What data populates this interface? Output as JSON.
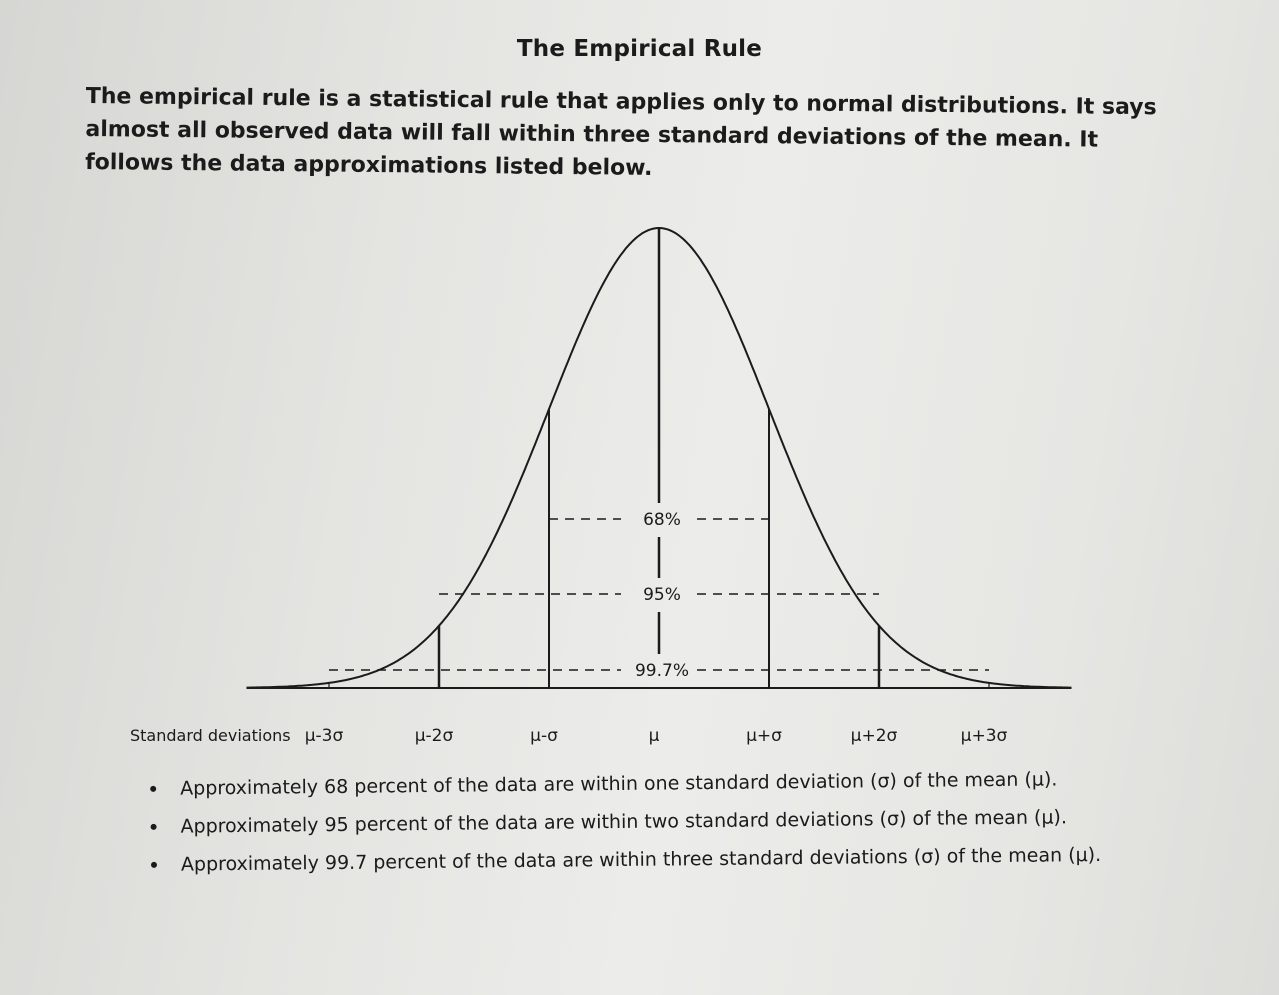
{
  "document": {
    "title": "The Empirical Rule",
    "intro": "The empirical rule is a statistical rule that applies only to normal distributions. It says almost all observed data will fall within three standard deviations of the mean. It follows the data approximations listed below."
  },
  "chart_data": {
    "type": "diagram",
    "axis_title": "Standard deviations",
    "ticks": [
      {
        "label": "μ-3σ",
        "z": -3
      },
      {
        "label": "μ-2σ",
        "z": -2
      },
      {
        "label": "μ-σ",
        "z": -1
      },
      {
        "label": "μ",
        "z": 0
      },
      {
        "label": "μ+σ",
        "z": 1
      },
      {
        "label": "μ+2σ",
        "z": 2
      },
      {
        "label": "μ+3σ",
        "z": 3
      }
    ],
    "intervals": [
      {
        "label": "68%",
        "sigma": 1
      },
      {
        "label": "95%",
        "sigma": 2
      },
      {
        "label": "99.7%",
        "sigma": 3
      }
    ]
  },
  "bullets": [
    "Approximately 68 percent of the data are within one standard deviation (σ) of the mean (μ).",
    "Approximately 95 percent of the data are within two standard deviations (σ) of the mean (μ).",
    "Approximately 99.7 percent of the data are within three standard deviations (σ) of the mean (μ)."
  ],
  "colors": {
    "ink": "#1b1b1b"
  }
}
